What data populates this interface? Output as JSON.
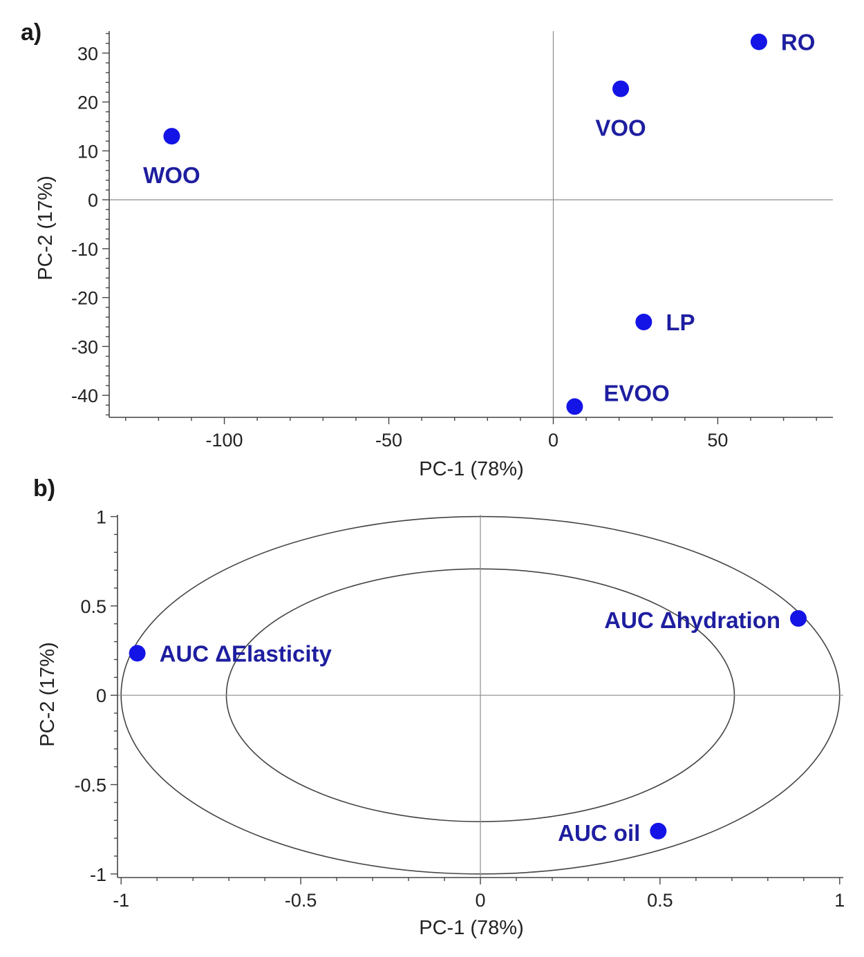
{
  "colors": {
    "points": "#1414e6",
    "labels": "#1e1ea0"
  },
  "chart_data": [
    {
      "type": "scatter",
      "panel_label": "a)",
      "title": "",
      "xlabel": "PC-1 (78%)",
      "ylabel": "PC-2 (17%)",
      "xlim": [
        -135,
        85
      ],
      "ylim": [
        -44.5,
        34.5
      ],
      "xticks": [
        -100,
        -50,
        0,
        50
      ],
      "xtick_labels": [
        "-100",
        "-50",
        "0",
        "50"
      ],
      "yticks": [
        30,
        20,
        10,
        0,
        -10,
        -20,
        -30,
        -40
      ],
      "ytick_labels": [
        "30",
        "20",
        "10",
        "0",
        "-10",
        "-20",
        "-30",
        "-40"
      ],
      "points": [
        {
          "label": "WOO",
          "x": -116,
          "y": 13,
          "label_pos": "below"
        },
        {
          "label": "VOO",
          "x": 20.5,
          "y": 22.7,
          "label_pos": "below"
        },
        {
          "label": "RO",
          "x": 62.5,
          "y": 32.3,
          "label_pos": "right"
        },
        {
          "label": "LP",
          "x": 27.5,
          "y": -25,
          "label_pos": "right"
        },
        {
          "label": "EVOO",
          "x": 6.5,
          "y": -42.3,
          "label_pos": "above-right"
        }
      ]
    },
    {
      "type": "scatter",
      "panel_label": "b)",
      "title": "",
      "xlabel": "PC-1 (78%)",
      "ylabel": "PC-2 (17%)",
      "xlim": [
        -1.01,
        1.01
      ],
      "ylim": [
        -1.02,
        1.01
      ],
      "xticks": [
        -1,
        -0.5,
        0,
        0.5,
        1
      ],
      "xtick_labels": [
        "-1",
        "-0.5",
        "0",
        "0.5",
        "1"
      ],
      "yticks": [
        1,
        0.5,
        0,
        -0.5,
        -1
      ],
      "ytick_labels": [
        "1",
        "0.5",
        "0",
        "-0.5",
        "-1"
      ],
      "correlation_circles": [
        1.0,
        0.707
      ],
      "points": [
        {
          "label": "AUC ΔElasticity",
          "x": -0.955,
          "y": 0.235,
          "label_pos": "right"
        },
        {
          "label": "AUC Δhydration",
          "x": 0.885,
          "y": 0.43,
          "label_pos": "left"
        },
        {
          "label": "AUC oil",
          "x": 0.495,
          "y": -0.76,
          "label_pos": "left"
        }
      ]
    }
  ]
}
